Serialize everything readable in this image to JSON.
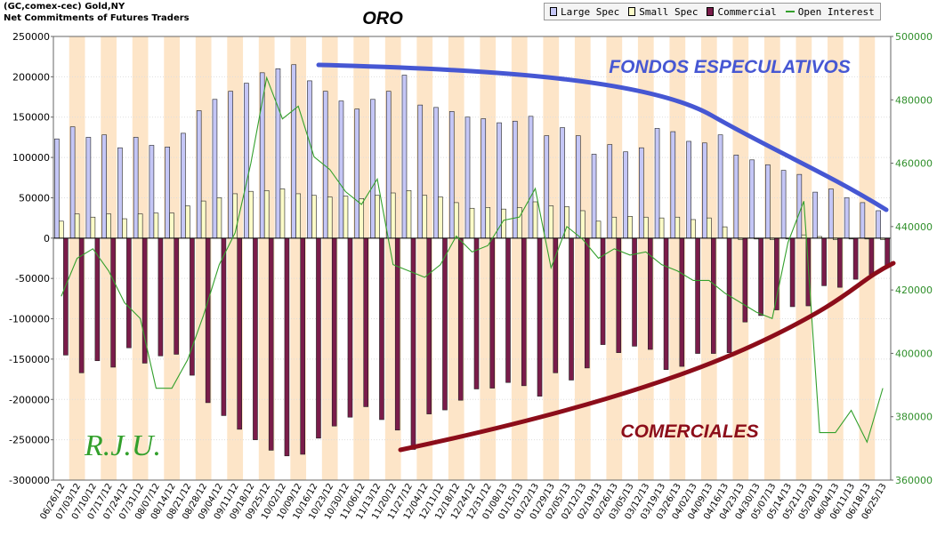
{
  "header": {
    "line1": "(GC,comex-cec) Gold,NY",
    "line2": "Net Commitments of Futures Traders"
  },
  "colors": {
    "large_spec": "#c4c6f6",
    "small_spec": "#fbfbc8",
    "commercial": "#7a1c4a",
    "open_interest": "#33a02c",
    "annotation_blue": "#4657d3",
    "annotation_red": "#8c0d1a",
    "stripe": "#fde5c8"
  },
  "legend": [
    {
      "name": "Large Spec",
      "color": "#c4c6f6",
      "kind": "bar"
    },
    {
      "name": "Small Spec",
      "color": "#fbfbc8",
      "kind": "bar"
    },
    {
      "name": "Commercial",
      "color": "#7a1c4a",
      "kind": "bar"
    },
    {
      "name": "Open Interest",
      "color": "#33a02c",
      "kind": "line"
    }
  ],
  "annotations": {
    "title": "ORO",
    "funds": "FONDOS ESPECULATIVOS",
    "commercials": "COMERCIALES",
    "signature": "R.J.U."
  },
  "chart_data": {
    "type": "bar",
    "legend_position": "top-right",
    "grid": true,
    "x": [
      "06/26/12",
      "07/03/12",
      "07/10/12",
      "07/17/12",
      "07/24/12",
      "07/31/12",
      "08/07/12",
      "08/14/12",
      "08/21/12",
      "08/28/12",
      "09/04/12",
      "09/11/12",
      "09/18/12",
      "09/25/12",
      "10/02/12",
      "10/09/12",
      "10/16/12",
      "10/23/12",
      "10/30/12",
      "11/06/12",
      "11/13/12",
      "11/20/12",
      "11/27/12",
      "12/04/12",
      "12/11/12",
      "12/18/12",
      "12/24/12",
      "12/31/12",
      "01/08/13",
      "01/15/13",
      "01/22/13",
      "01/29/13",
      "02/05/13",
      "02/12/13",
      "02/19/13",
      "02/26/13",
      "03/05/13",
      "03/12/13",
      "03/19/13",
      "03/26/13",
      "04/02/13",
      "04/09/13",
      "04/16/13",
      "04/23/13",
      "04/30/13",
      "05/07/13",
      "05/14/13",
      "05/21/13",
      "05/28/13",
      "06/04/13",
      "06/11/13",
      "06/18/13",
      "06/25/13"
    ],
    "ylim": [
      -300000,
      250000
    ],
    "yticks": [
      250000,
      200000,
      150000,
      100000,
      50000,
      0,
      -50000,
      -100000,
      -150000,
      -200000,
      -250000,
      -300000
    ],
    "y2lim": [
      360000,
      500000
    ],
    "y2ticks": [
      500000,
      480000,
      460000,
      440000,
      420000,
      400000,
      380000,
      360000
    ],
    "series": [
      {
        "name": "Large Spec",
        "axis": "left",
        "values": [
          123000,
          138000,
          125000,
          128000,
          112000,
          125000,
          115000,
          113000,
          130000,
          158000,
          172000,
          182000,
          192000,
          205000,
          210000,
          215000,
          195000,
          182000,
          170000,
          160000,
          172000,
          182000,
          202000,
          165000,
          162000,
          157000,
          150000,
          148000,
          143000,
          145000,
          151000,
          127000,
          137000,
          127000,
          104000,
          116000,
          107000,
          112000,
          136000,
          132000,
          120000,
          118000,
          128000,
          103000,
          97000,
          91000,
          84000,
          79000,
          57000,
          61000,
          50000,
          44000,
          34000
        ]
      },
      {
        "name": "Small Spec",
        "axis": "left",
        "values": [
          21000,
          30000,
          26000,
          30000,
          24000,
          30000,
          31000,
          31000,
          40000,
          46000,
          50000,
          55000,
          58000,
          59000,
          61000,
          55000,
          53000,
          51000,
          52000,
          49000,
          53000,
          56000,
          59000,
          53000,
          51000,
          44000,
          37000,
          38000,
          36000,
          38000,
          45000,
          40000,
          39000,
          34000,
          21000,
          26000,
          27000,
          26000,
          25000,
          26000,
          23000,
          25000,
          14000,
          -2000,
          -1000,
          -2000,
          -1000,
          4000,
          2000,
          -2000,
          -1000,
          -1000,
          -2000
        ]
      },
      {
        "name": "Commercial",
        "axis": "left",
        "values": [
          -145000,
          -167000,
          -152000,
          -160000,
          -136000,
          -155000,
          -146000,
          -144000,
          -170000,
          -204000,
          -220000,
          -237000,
          -250000,
          -263000,
          -270000,
          -268000,
          -248000,
          -233000,
          -222000,
          -209000,
          -225000,
          -238000,
          -262000,
          -218000,
          -213000,
          -201000,
          -187000,
          -186000,
          -179000,
          -183000,
          -196000,
          -167000,
          -176000,
          -161000,
          -132000,
          -142000,
          -134000,
          -138000,
          -163000,
          -159000,
          -143000,
          -143000,
          -142000,
          -104000,
          -96000,
          -89000,
          -85000,
          -84000,
          -59000,
          -61000,
          -51000,
          -45000,
          -34000
        ]
      },
      {
        "name": "Open Interest",
        "axis": "right",
        "values": [
          418000,
          430000,
          433000,
          426000,
          416000,
          411000,
          389000,
          389000,
          398000,
          412000,
          428000,
          438000,
          460000,
          487000,
          474000,
          478000,
          462000,
          458000,
          451000,
          447000,
          455000,
          428000,
          426000,
          424000,
          428000,
          437000,
          432000,
          434000,
          442000,
          443000,
          452000,
          427000,
          440000,
          436000,
          430000,
          433000,
          431000,
          432000,
          428000,
          426000,
          423000,
          423000,
          419000,
          416000,
          413000,
          411000,
          435000,
          448000,
          375000,
          375000,
          382000,
          372000,
          389000
        ]
      }
    ]
  }
}
